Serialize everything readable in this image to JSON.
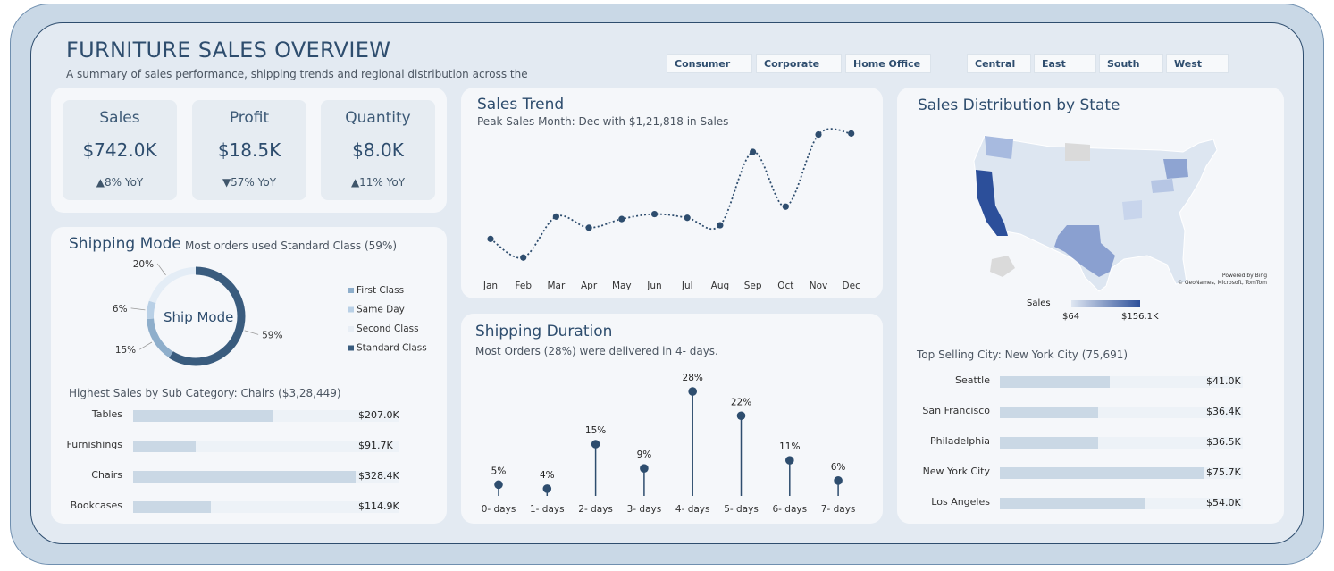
{
  "header": {
    "title": "FURNITURE SALES OVERVIEW",
    "subtitle": "A summary of sales performance, shipping trends and regional distribution across the"
  },
  "filters": {
    "segments": [
      "Consumer",
      "Corporate",
      "Home Office"
    ],
    "regions": [
      "Central",
      "East",
      "South",
      "West"
    ]
  },
  "kpis": [
    {
      "label": "Sales",
      "value": "$742.0K",
      "yoy": "▲8% YoY"
    },
    {
      "label": "Profit",
      "value": "$18.5K",
      "yoy": "▼57% YoY"
    },
    {
      "label": "Quantity",
      "value": "$8.0K",
      "yoy": "▲11% YoY"
    }
  ],
  "shipping_mode": {
    "title": "Shipping Mode",
    "note": "Most orders used Standard Class (59%)",
    "center_label": "Ship Mode"
  },
  "subcategory": {
    "title": "Highest Sales by Sub Category: Chairs ($3,28,449)"
  },
  "sales_trend": {
    "title": "Sales Trend",
    "note": "Peak Sales Month: Dec with $1,21,818 in Sales"
  },
  "shipping_duration": {
    "title": "Shipping Duration",
    "note": "Most Orders (28%) were delivered in 4- days."
  },
  "state_map": {
    "title": "Sales Distribution by State",
    "credit1": "Powered by Bing",
    "credit2": "© GeoNames, Microsoft, TomTom",
    "legend_title": "Sales",
    "legend_min": "$64",
    "legend_max": "$156.1K",
    "colors": {
      "low": "#dfe7f2",
      "high": "#2c4f9a"
    }
  },
  "city": {
    "title": "Top Selling City: New York City (75,691)"
  },
  "chart_data": [
    {
      "type": "pie",
      "name": "Shipping Mode",
      "categories": [
        "First Class",
        "Same Day",
        "Second Class",
        "Standard Class"
      ],
      "values": [
        15,
        6,
        20,
        59
      ],
      "labels": [
        "15%",
        "6%",
        "20%",
        "59%"
      ],
      "colors": [
        "#8eaecb",
        "#b9d0e6",
        "#e4edf6",
        "#3a5c7e"
      ],
      "legend": "right"
    },
    {
      "type": "bar",
      "name": "Sub Category Sales",
      "categories": [
        "Tables",
        "Furnishings",
        "Chairs",
        "Bookcases"
      ],
      "values": [
        207.0,
        91.7,
        328.4,
        114.9
      ],
      "labels": [
        "$207.0K",
        "$91.7K",
        "$328.4K",
        "$114.9K"
      ],
      "max": 328.4
    },
    {
      "type": "line",
      "name": "Sales Trend",
      "categories": [
        "Jan",
        "Feb",
        "Mar",
        "Apr",
        "May",
        "Jun",
        "Jul",
        "Aug",
        "Sep",
        "Oct",
        "Nov",
        "Dec"
      ],
      "values": [
        37000,
        22000,
        55000,
        46000,
        53000,
        57000,
        54000,
        48000,
        107000,
        63000,
        121000,
        121818
      ],
      "ylim": [
        15000,
        130000
      ],
      "grid": false
    },
    {
      "type": "scatter",
      "name": "Shipping Duration",
      "categories": [
        "0- days",
        "1- days",
        "2- days",
        "3- days",
        "4- days",
        "5- days",
        "6- days",
        "7- days"
      ],
      "values": [
        5,
        4,
        15,
        9,
        28,
        22,
        11,
        6
      ],
      "labels": [
        "5%",
        "4%",
        "15%",
        "9%",
        "28%",
        "22%",
        "11%",
        "6%"
      ],
      "ylim": [
        0,
        30
      ]
    },
    {
      "type": "bar",
      "name": "Top Cities",
      "categories": [
        "Seattle",
        "San Francisco",
        "Philadelphia",
        "New York City",
        "Los Angeles"
      ],
      "values": [
        41.0,
        36.4,
        36.5,
        75.7,
        54.0
      ],
      "labels": [
        "$41.0K",
        "$36.4K",
        "$36.5K",
        "$75.7K",
        "$54.0K"
      ],
      "max": 75.7
    }
  ]
}
